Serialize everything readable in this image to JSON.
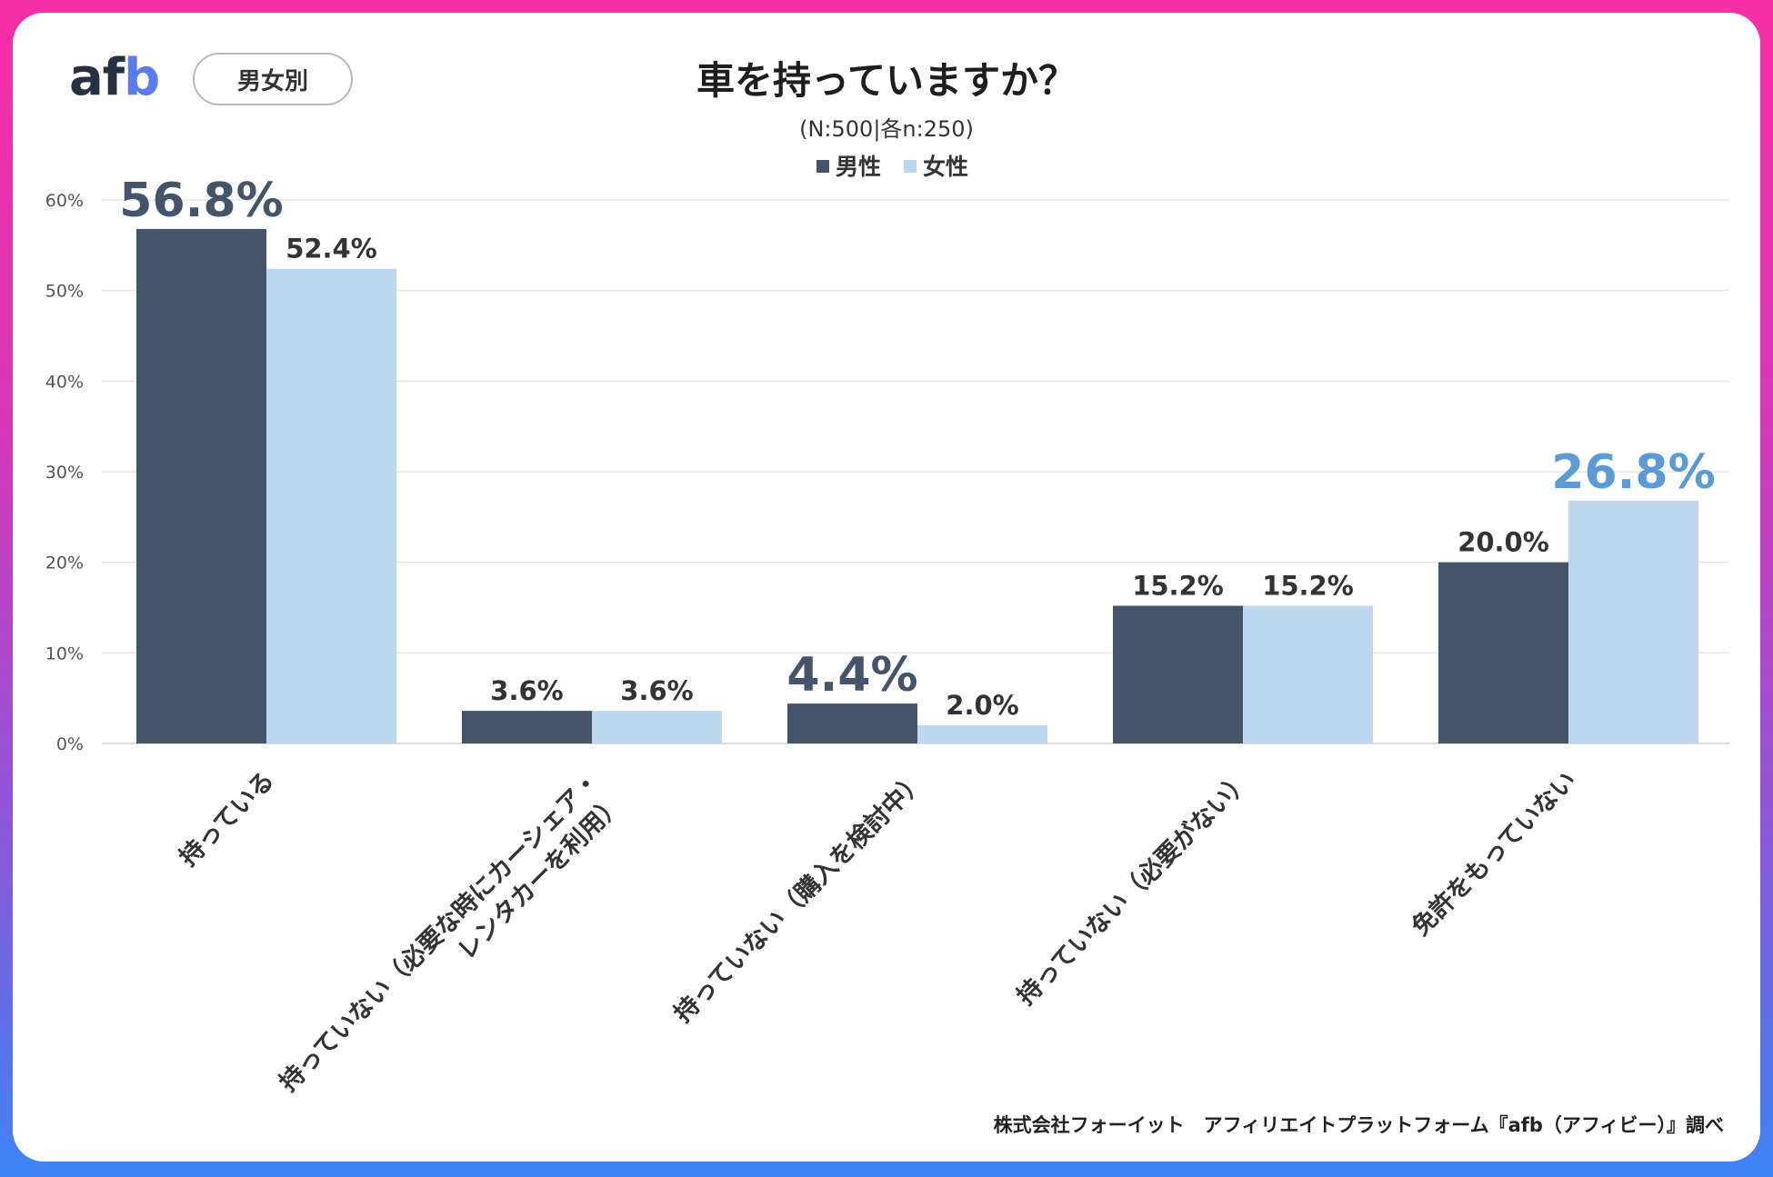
{
  "brand": {
    "logo_main": "af",
    "logo_accent": "b"
  },
  "filter_label": "男女別",
  "footer": "株式会社フォーイット　アフィリエイトプラットフォーム『afb（アフィビー）』調べ",
  "colors": {
    "male": "#44546a",
    "female": "#bdd7ee",
    "highlight_male": "#44546a",
    "highlight_female": "#5b9bd5"
  },
  "chart_data": {
    "type": "bar",
    "title": "車を持っていますか？",
    "subtitle": "(N:500|各n:250)",
    "categories": [
      [
        "持っている"
      ],
      [
        "持っていない（必要な時にカーシェア・",
        "レンタカーを利用）"
      ],
      [
        "持っていない（購入を検討中）"
      ],
      [
        "持っていない（必要がない）"
      ],
      [
        "免許をもっていない"
      ]
    ],
    "series": [
      {
        "name": "男性",
        "values": [
          56.8,
          3.6,
          4.4,
          15.2,
          20.0
        ],
        "labels": [
          "56.8%",
          "3.6%",
          "4.4%",
          "15.2%",
          "20.0%"
        ],
        "highlight": [
          true,
          false,
          true,
          false,
          false
        ]
      },
      {
        "name": "女性",
        "values": [
          52.4,
          3.6,
          2.0,
          15.2,
          26.8
        ],
        "labels": [
          "52.4%",
          "3.6%",
          "2.0%",
          "15.2%",
          "26.8%"
        ],
        "highlight": [
          false,
          false,
          false,
          false,
          true
        ]
      }
    ],
    "ylim": [
      0,
      60
    ],
    "yticks": [
      "0%",
      "10%",
      "20%",
      "30%",
      "40%",
      "50%",
      "60%"
    ],
    "legend": "top-center",
    "grid": true
  }
}
